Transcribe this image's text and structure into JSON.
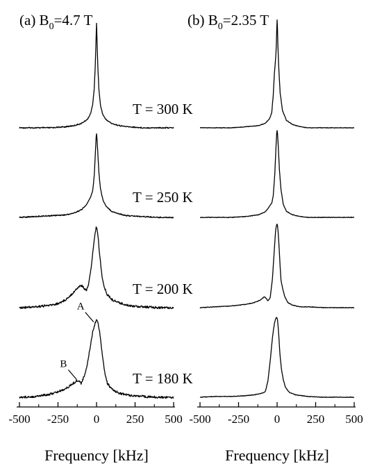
{
  "chart_data": [
    {
      "type": "line",
      "panel_label": "(a) B",
      "field_sub": "0",
      "field_value": "=4.7 T",
      "xlabel": "Frequency [kHz]",
      "xlim": [
        -500,
        500
      ],
      "xticks": [
        -500,
        -250,
        0,
        250,
        500
      ],
      "series": [
        {
          "temperature_label": "T = 300 K",
          "x": [
            -500,
            -400,
            -300,
            -200,
            -150,
            -100,
            -60,
            -40,
            -25,
            -15,
            -8,
            -3,
            0,
            3,
            8,
            15,
            25,
            40,
            60,
            100,
            150,
            200,
            300,
            400,
            500
          ],
          "y": [
            0.0,
            0.0,
            0.0,
            0.01,
            0.02,
            0.04,
            0.08,
            0.13,
            0.22,
            0.38,
            0.6,
            0.85,
            1.0,
            0.85,
            0.6,
            0.38,
            0.22,
            0.13,
            0.08,
            0.04,
            0.02,
            0.01,
            0.0,
            0.0,
            0.0
          ]
        },
        {
          "temperature_label": "T = 250 K",
          "x": [
            -500,
            -400,
            -300,
            -200,
            -150,
            -100,
            -70,
            -50,
            -35,
            -25,
            -15,
            -8,
            -3,
            0,
            3,
            8,
            15,
            25,
            40,
            60,
            100,
            150,
            200,
            300,
            400,
            500
          ],
          "y": [
            0.0,
            0.01,
            0.02,
            0.03,
            0.05,
            0.09,
            0.14,
            0.2,
            0.26,
            0.32,
            0.5,
            0.75,
            0.95,
            1.0,
            0.95,
            0.78,
            0.55,
            0.35,
            0.22,
            0.14,
            0.07,
            0.04,
            0.02,
            0.01,
            0.0,
            0.0
          ]
        },
        {
          "temperature_label": "T = 200 K",
          "x": [
            -500,
            -400,
            -300,
            -250,
            -200,
            -160,
            -130,
            -110,
            -95,
            -80,
            -65,
            -50,
            -35,
            -20,
            -10,
            -3,
            0,
            3,
            10,
            20,
            35,
            50,
            70,
            100,
            150,
            200,
            300,
            400,
            500
          ],
          "y": [
            0.0,
            0.01,
            0.03,
            0.05,
            0.1,
            0.17,
            0.23,
            0.27,
            0.27,
            0.24,
            0.22,
            0.3,
            0.5,
            0.75,
            0.92,
            0.99,
            1.0,
            0.98,
            0.88,
            0.66,
            0.4,
            0.25,
            0.16,
            0.1,
            0.06,
            0.03,
            0.01,
            0.0,
            0.0
          ]
        },
        {
          "temperature_label": "T = 180 K",
          "x": [
            -500,
            -400,
            -300,
            -250,
            -200,
            -170,
            -150,
            -130,
            -115,
            -100,
            -80,
            -60,
            -40,
            -25,
            -10,
            0,
            10,
            20,
            30,
            40,
            55,
            70,
            100,
            150,
            200,
            300,
            400,
            500
          ],
          "y": [
            0.0,
            0.01,
            0.04,
            0.07,
            0.11,
            0.15,
            0.18,
            0.21,
            0.21,
            0.18,
            0.27,
            0.42,
            0.66,
            0.84,
            0.95,
            1.0,
            0.95,
            0.85,
            0.68,
            0.5,
            0.3,
            0.18,
            0.1,
            0.05,
            0.03,
            0.01,
            0.0,
            0.0
          ]
        }
      ],
      "annotations": [
        {
          "text": "A",
          "x": -10,
          "y": 0.95
        },
        {
          "text": "B",
          "x": -120,
          "y": 0.21
        }
      ]
    },
    {
      "type": "line",
      "panel_label": "(b) B",
      "field_sub": "0",
      "field_value": "=2.35 T",
      "xlabel": "Frequency [kHz]",
      "xlim": [
        -500,
        500
      ],
      "xticks": [
        -500,
        -250,
        0,
        250,
        500
      ],
      "series": [
        {
          "temperature_label": "T = 300 K",
          "x": [
            -500,
            -400,
            -300,
            -200,
            -120,
            -80,
            -50,
            -35,
            -25,
            -18,
            -12,
            -6,
            -2,
            0,
            2,
            6,
            12,
            20,
            35,
            60,
            100,
            150,
            200,
            300,
            400,
            500
          ],
          "y": [
            0.0,
            0.0,
            0.0,
            0.01,
            0.02,
            0.04,
            0.08,
            0.14,
            0.3,
            0.5,
            0.6,
            0.72,
            0.92,
            1.0,
            0.94,
            0.72,
            0.52,
            0.32,
            0.16,
            0.07,
            0.03,
            0.01,
            0.0,
            0.0,
            0.0,
            0.0
          ]
        },
        {
          "temperature_label": "T = 250 K",
          "x": [
            -500,
            -400,
            -300,
            -200,
            -120,
            -80,
            -60,
            -45,
            -35,
            -25,
            -15,
            -8,
            -3,
            0,
            3,
            8,
            15,
            25,
            40,
            60,
            100,
            150,
            200,
            300,
            400,
            500
          ],
          "y": [
            0.0,
            0.0,
            0.0,
            0.01,
            0.03,
            0.06,
            0.1,
            0.14,
            0.16,
            0.25,
            0.5,
            0.78,
            0.96,
            1.0,
            0.96,
            0.8,
            0.55,
            0.32,
            0.15,
            0.07,
            0.03,
            0.01,
            0.0,
            0.0,
            0.0,
            0.0
          ]
        },
        {
          "temperature_label": "T = 200 K",
          "x": [
            -500,
            -400,
            -300,
            -200,
            -150,
            -110,
            -90,
            -80,
            -70,
            -60,
            -45,
            -30,
            -18,
            -10,
            -4,
            0,
            4,
            10,
            18,
            25,
            35,
            50,
            70,
            100,
            150,
            200,
            300,
            400,
            500
          ],
          "y": [
            0.0,
            0.01,
            0.02,
            0.04,
            0.06,
            0.09,
            0.12,
            0.13,
            0.11,
            0.08,
            0.12,
            0.35,
            0.7,
            0.92,
            0.99,
            1.0,
            0.97,
            0.82,
            0.55,
            0.33,
            0.24,
            0.13,
            0.06,
            0.03,
            0.01,
            0.01,
            0.0,
            0.0,
            0.0
          ]
        },
        {
          "temperature_label": "T = 180 K",
          "x": [
            -500,
            -400,
            -300,
            -200,
            -150,
            -100,
            -85,
            -75,
            -60,
            -45,
            -30,
            -18,
            -10,
            -4,
            0,
            4,
            10,
            18,
            28,
            40,
            55,
            80,
            120,
            200,
            300,
            400,
            500
          ],
          "y": [
            0.0,
            0.01,
            0.01,
            0.02,
            0.03,
            0.05,
            0.06,
            0.08,
            0.2,
            0.45,
            0.75,
            0.92,
            0.98,
            1.0,
            0.99,
            0.95,
            0.8,
            0.55,
            0.35,
            0.22,
            0.12,
            0.06,
            0.03,
            0.01,
            0.0,
            0.0,
            0.0
          ]
        }
      ]
    }
  ]
}
